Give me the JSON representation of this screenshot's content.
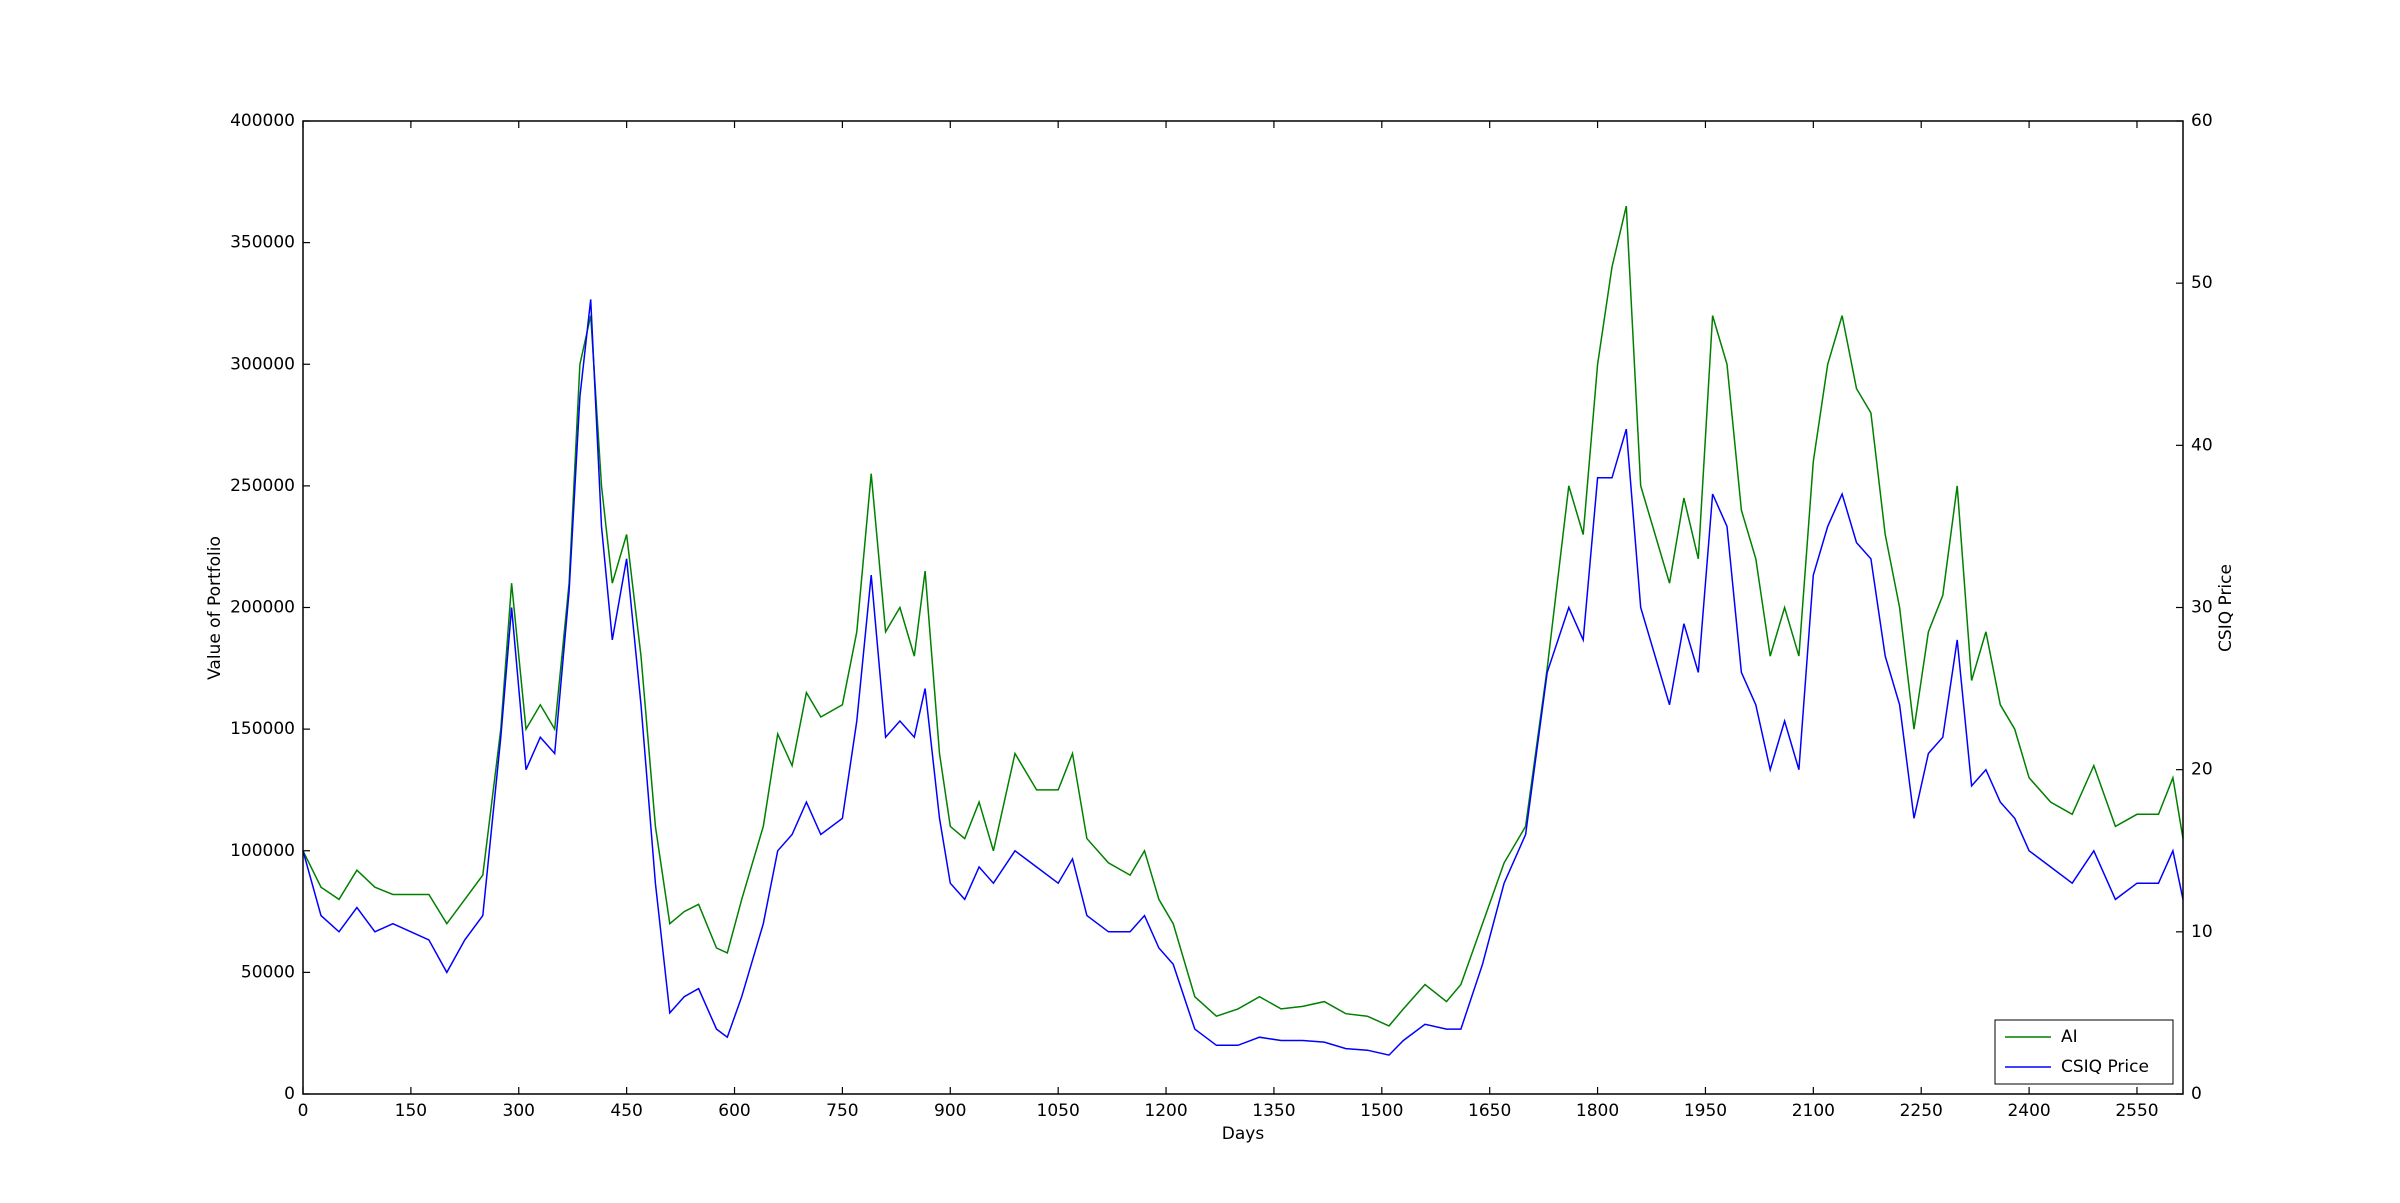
{
  "chart_data": {
    "type": "line",
    "xlabel": "Days",
    "ylabel": "Value of Portfolio",
    "y2label": "CSIQ Price",
    "x": [
      0,
      25,
      50,
      75,
      100,
      125,
      150,
      175,
      200,
      225,
      250,
      275,
      290,
      310,
      330,
      350,
      370,
      385,
      400,
      415,
      430,
      450,
      470,
      490,
      510,
      530,
      550,
      575,
      590,
      610,
      640,
      660,
      680,
      700,
      720,
      750,
      770,
      790,
      810,
      830,
      850,
      865,
      885,
      900,
      920,
      940,
      960,
      990,
      1020,
      1050,
      1070,
      1090,
      1120,
      1150,
      1170,
      1190,
      1210,
      1240,
      1270,
      1300,
      1330,
      1360,
      1390,
      1420,
      1450,
      1480,
      1510,
      1530,
      1560,
      1590,
      1610,
      1640,
      1670,
      1700,
      1730,
      1760,
      1780,
      1800,
      1820,
      1840,
      1860,
      1880,
      1900,
      1920,
      1940,
      1960,
      1980,
      2000,
      2020,
      2040,
      2060,
      2080,
      2100,
      2120,
      2140,
      2160,
      2180,
      2200,
      2220,
      2240,
      2260,
      2280,
      2300,
      2320,
      2340,
      2360,
      2380,
      2400,
      2430,
      2460,
      2490,
      2520,
      2550,
      2580,
      2600,
      2614
    ],
    "series": [
      {
        "name": "AI",
        "color": "#008000",
        "values": [
          100000,
          85000,
          80000,
          92000,
          85000,
          82000,
          82000,
          82000,
          70000,
          80000,
          90000,
          150000,
          210000,
          150000,
          160000,
          150000,
          210000,
          300000,
          320000,
          250000,
          210000,
          230000,
          180000,
          110000,
          70000,
          75000,
          78000,
          60000,
          58000,
          80000,
          110000,
          148000,
          135000,
          165000,
          155000,
          160000,
          190000,
          255000,
          190000,
          200000,
          180000,
          215000,
          140000,
          110000,
          105000,
          120000,
          100000,
          140000,
          125000,
          125000,
          140000,
          105000,
          95000,
          90000,
          100000,
          80000,
          70000,
          40000,
          32000,
          35000,
          40000,
          35000,
          36000,
          38000,
          33000,
          32000,
          28000,
          35000,
          45000,
          38000,
          45000,
          70000,
          95000,
          110000,
          175000,
          250000,
          230000,
          300000,
          340000,
          365000,
          250000,
          230000,
          210000,
          245000,
          220000,
          320000,
          300000,
          240000,
          220000,
          180000,
          200000,
          180000,
          260000,
          300000,
          320000,
          290000,
          280000,
          230000,
          200000,
          150000,
          190000,
          205000,
          250000,
          170000,
          190000,
          160000,
          150000,
          130000,
          120000,
          115000,
          135000,
          110000,
          115000,
          115000,
          130000,
          105000
        ]
      },
      {
        "name": "CSIQ Price",
        "color": "#0000ff",
        "axis": "y2",
        "values": [
          15,
          11,
          10,
          11.5,
          10,
          10.5,
          10,
          9.5,
          7.5,
          9.5,
          11,
          22,
          30,
          20,
          22,
          21,
          31,
          43,
          49,
          35,
          28,
          33,
          24,
          13,
          5,
          6,
          6.5,
          4,
          3.5,
          6,
          10.5,
          15,
          16,
          18,
          16,
          17,
          23,
          32,
          22,
          23,
          22,
          25,
          17,
          13,
          12,
          14,
          13,
          15,
          14,
          13,
          14.5,
          11,
          10,
          10,
          11,
          9,
          8,
          4,
          3,
          3,
          3.5,
          3.3,
          3.3,
          3.2,
          2.8,
          2.7,
          2.4,
          3.3,
          4.3,
          4.0,
          4,
          8,
          13,
          16,
          26,
          30,
          28,
          38,
          38,
          41,
          30,
          27,
          24,
          29,
          26,
          37,
          35,
          26,
          24,
          20,
          23,
          20,
          32,
          35,
          37,
          34,
          33,
          27,
          24,
          17,
          21,
          22,
          28,
          19,
          20,
          18,
          17,
          15,
          14,
          13,
          15,
          12,
          13,
          13,
          15,
          12
        ]
      }
    ],
    "xlim": [
      0,
      2614
    ],
    "xticks": [
      0,
      150,
      300,
      450,
      600,
      750,
      900,
      1050,
      1200,
      1350,
      1500,
      1650,
      1800,
      1950,
      2100,
      2250,
      2400,
      2550
    ],
    "ylim": [
      0,
      400000
    ],
    "yticks": [
      0,
      50000,
      100000,
      150000,
      200000,
      250000,
      300000,
      350000,
      400000
    ],
    "y2lim": [
      0,
      60
    ],
    "y2ticks": [
      0,
      10,
      20,
      30,
      40,
      50,
      60
    ],
    "grid": false,
    "legend": "lower right"
  }
}
